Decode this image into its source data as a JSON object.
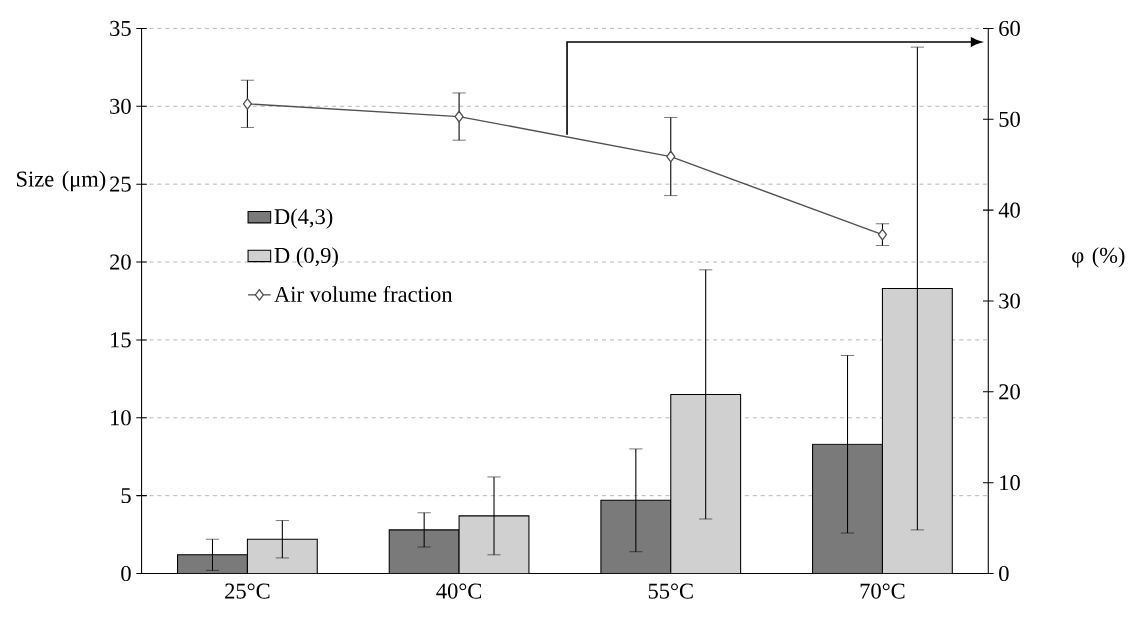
{
  "chart_data": {
    "type": "bar",
    "categories": [
      "25°C",
      "40°C",
      "55°C",
      "70°C"
    ],
    "series": [
      {
        "name": "D(4,3)",
        "color": "#7a7a7a",
        "values": [
          1.2,
          2.8,
          4.7,
          8.3
        ],
        "errors": [
          1.0,
          1.1,
          3.3,
          5.7
        ]
      },
      {
        "name": "D (0,9)",
        "color": "#d0d0d0",
        "values": [
          2.2,
          3.7,
          11.5,
          18.3
        ],
        "errors": [
          1.2,
          2.5,
          8.0,
          15.5
        ]
      },
      {
        "name": "Air volume fraction",
        "type": "line",
        "axis": "y2",
        "color": "#505050",
        "marker": "diamond",
        "values": [
          51.7,
          50.3,
          45.9,
          37.3
        ],
        "errors": [
          2.6,
          2.6,
          4.3,
          1.2
        ]
      }
    ],
    "ylabel": "Size (μm)",
    "y2label": "φ (%)",
    "ylim": [
      0,
      35
    ],
    "yticks": [
      0,
      5,
      10,
      15,
      20,
      25,
      30,
      35
    ],
    "y2lim": [
      0,
      60
    ],
    "y2ticks": [
      0,
      10,
      20,
      30,
      40,
      50,
      60
    ],
    "grid": "y",
    "legend": "left"
  }
}
